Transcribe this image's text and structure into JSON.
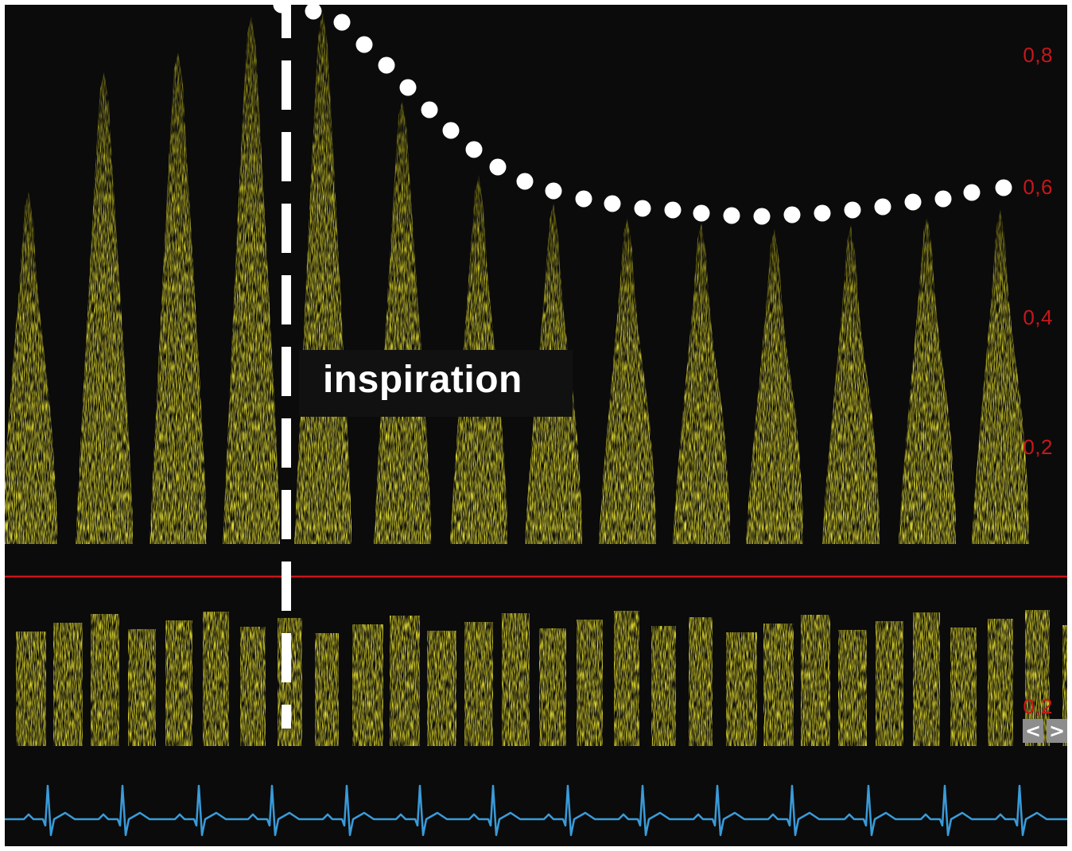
{
  "annotation": {
    "label": "inspiration"
  },
  "velocity_scale": {
    "labels": [
      "0,8",
      "0,6",
      "0,4",
      "0,2",
      "0,2"
    ],
    "color": "#c8161b"
  },
  "colors": {
    "background": "#0b0b0b",
    "doppler_signal": "#e8e030",
    "baseline": "#c8161b",
    "ecg_trace": "#3a9bd8",
    "envelope_dots": "#ffffff",
    "marker_line": "#ffffff"
  },
  "navigation": {
    "prev_label": "<",
    "next_label": ">"
  }
}
